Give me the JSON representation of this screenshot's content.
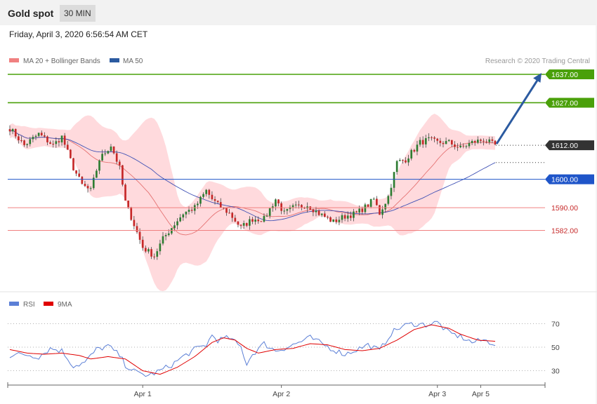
{
  "header": {
    "instrument": "Gold spot",
    "timeframe": "30 MIN"
  },
  "timestamp": "Friday, April 3, 2020 6:56:54 AM CET",
  "credit": "Research © 2020 Trading Central",
  "legend": {
    "bollinger": "MA 20 + Bollinger Bands",
    "ma50": "MA 50",
    "rsi": "RSI",
    "rsi_ma": "9MA"
  },
  "colors": {
    "up": "#2e7d32",
    "down": "#c62828",
    "ma20": "#e57373",
    "ma50": "#3f51b5",
    "band": "#ffcdd2",
    "target": "#4aa00a",
    "pivot": "#1f55c9",
    "support": "#f08080",
    "current": "#333333",
    "arrow": "#2b5aa0",
    "rsi": "#5b7fd6",
    "rsi_ma": "#e00000"
  },
  "chart_data": [
    {
      "type": "candlestick",
      "ylim": [
        1554,
        1647
      ],
      "x_ticks": [
        "Apr 1",
        "Apr 2",
        "Apr 3",
        "Apr 5"
      ],
      "levels": [
        {
          "value": 1637.0,
          "label": "1637.00",
          "kind": "target"
        },
        {
          "value": 1627.0,
          "label": "1627.00",
          "kind": "target"
        },
        {
          "value": 1612.0,
          "label": "1612.00",
          "kind": "current"
        },
        {
          "value": 1600.0,
          "label": "1600.00",
          "kind": "pivot"
        },
        {
          "value": 1590.0,
          "label": "1590.00",
          "kind": "support"
        },
        {
          "value": 1582.0,
          "label": "1582.00",
          "kind": "support"
        }
      ],
      "forecast": {
        "from": 1612,
        "to": 1637,
        "direction": "up"
      },
      "anchors": [
        [
          0,
          1618
        ],
        [
          5,
          1612
        ],
        [
          10,
          1616
        ],
        [
          15,
          1612
        ],
        [
          18,
          1615
        ],
        [
          22,
          1604
        ],
        [
          25,
          1598
        ],
        [
          28,
          1596
        ],
        [
          31,
          1607
        ],
        [
          35,
          1612
        ],
        [
          38,
          1604
        ],
        [
          40,
          1592
        ],
        [
          43,
          1584
        ],
        [
          46,
          1576
        ],
        [
          50,
          1573
        ],
        [
          53,
          1579
        ],
        [
          56,
          1583
        ],
        [
          60,
          1588
        ],
        [
          64,
          1590
        ],
        [
          68,
          1596
        ],
        [
          70,
          1593
        ],
        [
          72,
          1591
        ],
        [
          76,
          1588
        ],
        [
          80,
          1583
        ],
        [
          84,
          1586
        ],
        [
          88,
          1586
        ],
        [
          92,
          1593
        ],
        [
          95,
          1588
        ],
        [
          98,
          1590
        ],
        [
          103,
          1591
        ],
        [
          107,
          1588
        ],
        [
          112,
          1585
        ],
        [
          116,
          1587
        ],
        [
          120,
          1588
        ],
        [
          124,
          1591
        ],
        [
          126,
          1593
        ],
        [
          128,
          1588
        ],
        [
          131,
          1594
        ],
        [
          134,
          1606
        ],
        [
          137,
          1607
        ],
        [
          142,
          1613
        ],
        [
          145,
          1614
        ],
        [
          148,
          1613
        ],
        [
          152,
          1613
        ],
        [
          156,
          1611
        ],
        [
          160,
          1613
        ],
        [
          164,
          1614
        ],
        [
          168,
          1612
        ]
      ],
      "rsi": {
        "ticks": [
          70,
          50,
          30
        ],
        "values": [
          [
            0,
            43
          ],
          [
            5,
            44
          ],
          [
            10,
            42
          ],
          [
            14,
            49
          ],
          [
            18,
            47
          ],
          [
            22,
            34
          ],
          [
            26,
            37
          ],
          [
            30,
            48
          ],
          [
            34,
            51
          ],
          [
            38,
            43
          ],
          [
            40,
            35
          ],
          [
            44,
            28
          ],
          [
            48,
            26
          ],
          [
            52,
            30
          ],
          [
            56,
            35
          ],
          [
            60,
            42
          ],
          [
            64,
            48
          ],
          [
            68,
            52
          ],
          [
            70,
            60
          ],
          [
            72,
            56
          ],
          [
            76,
            58
          ],
          [
            80,
            50
          ],
          [
            82,
            36
          ],
          [
            84,
            44
          ],
          [
            88,
            53
          ],
          [
            92,
            47
          ],
          [
            96,
            50
          ],
          [
            100,
            54
          ],
          [
            104,
            58
          ],
          [
            108,
            53
          ],
          [
            112,
            48
          ],
          [
            116,
            44
          ],
          [
            120,
            48
          ],
          [
            124,
            52
          ],
          [
            128,
            47
          ],
          [
            132,
            62
          ],
          [
            136,
            68
          ],
          [
            140,
            70
          ],
          [
            144,
            69
          ],
          [
            148,
            71
          ],
          [
            152,
            62
          ],
          [
            156,
            59
          ],
          [
            160,
            54
          ],
          [
            164,
            56
          ],
          [
            168,
            53
          ]
        ],
        "ma": [
          [
            0,
            48
          ],
          [
            6,
            45
          ],
          [
            12,
            44
          ],
          [
            18,
            45
          ],
          [
            24,
            43
          ],
          [
            28,
            40
          ],
          [
            34,
            42
          ],
          [
            40,
            40
          ],
          [
            46,
            30
          ],
          [
            52,
            27
          ],
          [
            58,
            33
          ],
          [
            64,
            42
          ],
          [
            70,
            54
          ],
          [
            74,
            58
          ],
          [
            78,
            56
          ],
          [
            82,
            49
          ],
          [
            86,
            45
          ],
          [
            92,
            48
          ],
          [
            98,
            49
          ],
          [
            104,
            53
          ],
          [
            110,
            52
          ],
          [
            116,
            48
          ],
          [
            122,
            47
          ],
          [
            128,
            49
          ],
          [
            134,
            56
          ],
          [
            140,
            65
          ],
          [
            146,
            69
          ],
          [
            152,
            66
          ],
          [
            156,
            61
          ],
          [
            162,
            56
          ],
          [
            168,
            55
          ]
        ]
      }
    }
  ]
}
